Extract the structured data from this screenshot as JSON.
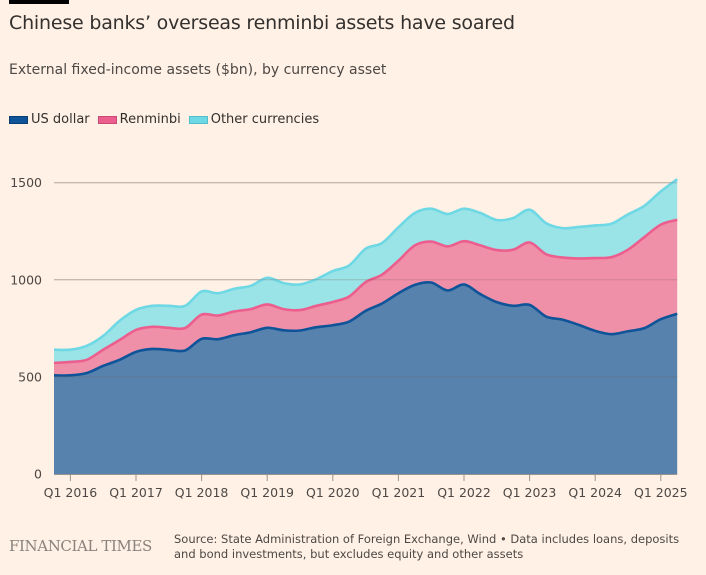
{
  "header": {
    "title": "Chinese banks’ overseas renminbi assets have soared",
    "subtitle": "External fixed-income assets ($bn), by currency asset"
  },
  "legend": [
    {
      "label": "US dollar",
      "color": "#0F5499",
      "fill": "#5682AD"
    },
    {
      "label": "Renminbi",
      "color": "#EB5E8D",
      "fill": "#F08FA8"
    },
    {
      "label": "Other currencies",
      "color": "#6ED8E5",
      "fill": "#9AE3E7"
    }
  ],
  "footer": {
    "logo": "FINANCIAL TIMES",
    "source": "Source: State Administration of Foreign Exchange, Wind • Data includes loans, deposits and bond investments, but excludes equity and other assets"
  },
  "chart_data": {
    "type": "area",
    "stacked": true,
    "title": "Chinese banks’ overseas renminbi assets have soared",
    "subtitle": "External fixed-income assets ($bn), by currency asset",
    "xlabel": "",
    "ylabel": "$bn",
    "ylim": [
      0,
      1550
    ],
    "yticks": [
      0,
      500,
      1000,
      1500
    ],
    "grid": true,
    "legend_position": "top-left",
    "x": [
      "Q4 2015",
      "Q1 2016",
      "Q2 2016",
      "Q3 2016",
      "Q4 2016",
      "Q1 2017",
      "Q2 2017",
      "Q3 2017",
      "Q4 2017",
      "Q1 2018",
      "Q2 2018",
      "Q3 2018",
      "Q4 2018",
      "Q1 2019",
      "Q2 2019",
      "Q3 2019",
      "Q4 2019",
      "Q1 2020",
      "Q2 2020",
      "Q3 2020",
      "Q4 2020",
      "Q1 2021",
      "Q2 2021",
      "Q3 2021",
      "Q4 2021",
      "Q1 2022",
      "Q2 2022",
      "Q3 2022",
      "Q4 2022",
      "Q1 2023",
      "Q2 2023",
      "Q3 2023",
      "Q4 2023",
      "Q1 2024",
      "Q2 2024",
      "Q3 2024",
      "Q4 2024",
      "Q1 2025",
      "Q2 2025"
    ],
    "xticks": [
      "Q1 2016",
      "Q1 2017",
      "Q1 2018",
      "Q1 2019",
      "Q1 2020",
      "Q1 2021",
      "Q1 2022",
      "Q1 2023",
      "Q1 2024",
      "Q1 2025"
    ],
    "series": [
      {
        "name": "US dollar",
        "values": [
          508,
          508,
          520,
          557,
          588,
          629,
          644,
          639,
          636,
          696,
          694,
          715,
          730,
          753,
          740,
          739,
          756,
          766,
          785,
          840,
          878,
          931,
          974,
          986,
          945,
          976,
          926,
          885,
          866,
          871,
          811,
          795,
          768,
          737,
          720,
          735,
          751,
          797,
          825
        ]
      },
      {
        "name": "Renminbi",
        "values": [
          64,
          69,
          68,
          83,
          102,
          113,
          114,
          114,
          116,
          125,
          122,
          122,
          119,
          120,
          109,
          105,
          110,
          120,
          129,
          148,
          148,
          167,
          203,
          211,
          227,
          223,
          251,
          268,
          289,
          321,
          321,
          320,
          342,
          375,
          397,
          420,
          469,
          487,
          484
        ]
      },
      {
        "name": "Other currencies",
        "values": [
          68,
          63,
          72,
          71,
          99,
          103,
          108,
          113,
          114,
          119,
          115,
          117,
          120,
          137,
          134,
          132,
          137,
          159,
          160,
          172,
          163,
          172,
          167,
          169,
          167,
          167,
          167,
          155,
          163,
          169,
          160,
          151,
          162,
          168,
          172,
          182,
          161,
          171,
          209
        ]
      }
    ]
  }
}
